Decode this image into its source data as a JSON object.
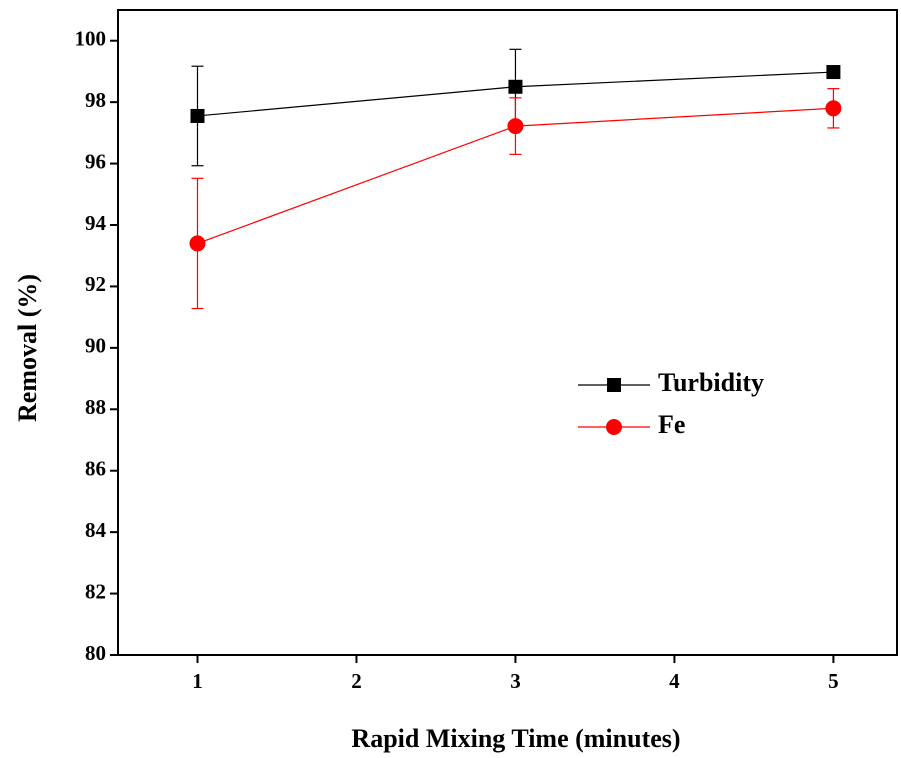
{
  "chart_data": {
    "type": "line",
    "x_label": "Rapid Mixing Time (minutes)",
    "y_label": "Removal (%)",
    "x": [
      1,
      3,
      5
    ],
    "series": [
      {
        "name": "Turbidity",
        "color": "#000000",
        "marker": "square",
        "values": [
          97.55,
          98.5,
          98.98
        ],
        "errors": [
          1.62,
          1.22,
          0
        ]
      },
      {
        "name": "Fe",
        "color": "#ff0000",
        "marker": "circle",
        "values": [
          93.4,
          97.22,
          97.8
        ],
        "errors": [
          2.12,
          0.92,
          0.64
        ]
      }
    ],
    "xlim": [
      0.5,
      5.4
    ],
    "xticks": [
      1,
      2,
      3,
      4,
      5
    ],
    "ylim": [
      80,
      101
    ],
    "yticks": [
      80,
      82,
      84,
      86,
      88,
      90,
      92,
      94,
      96,
      98,
      100
    ],
    "grid": false,
    "legend": "right"
  }
}
